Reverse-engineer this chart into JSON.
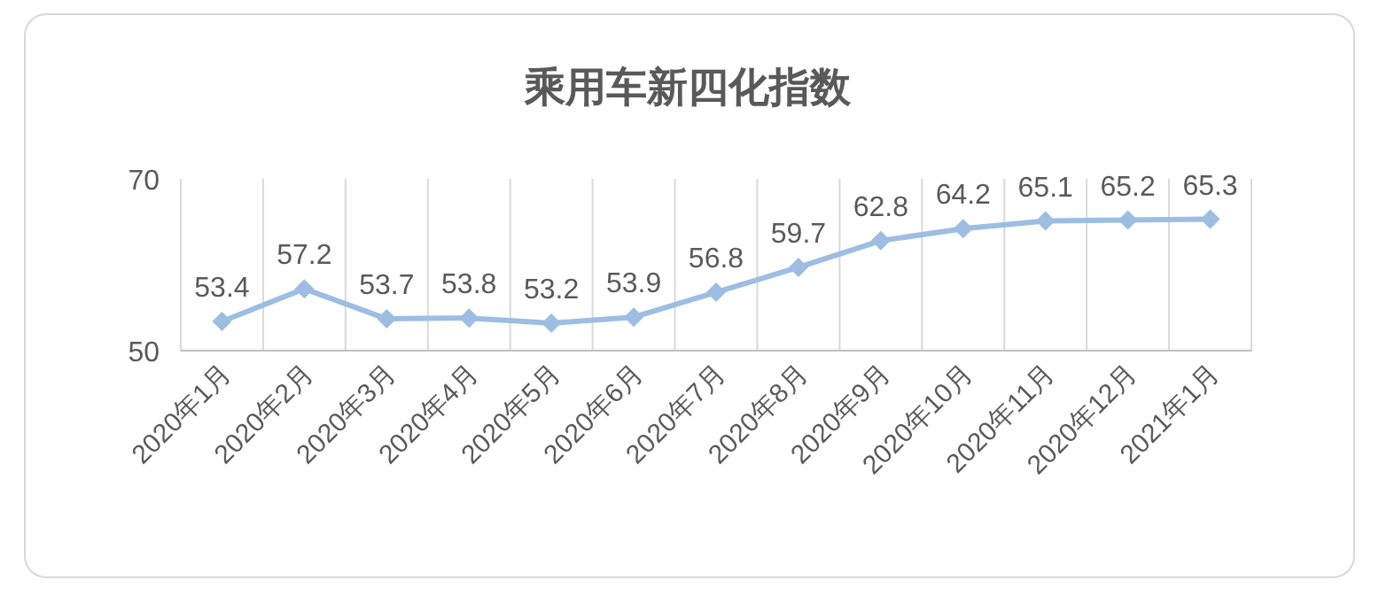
{
  "chart_data": {
    "type": "line",
    "title": "乘用车新四化指数",
    "categories": [
      "2020年1月",
      "2020年2月",
      "2020年3月",
      "2020年4月",
      "2020年5月",
      "2020年6月",
      "2020年7月",
      "2020年8月",
      "2020年9月",
      "2020年10月",
      "2020年11月",
      "2020年12月",
      "2021年1月"
    ],
    "series": [
      {
        "color": "#9dbde3",
        "values": [
          53.4,
          57.2,
          53.7,
          53.8,
          53.2,
          53.9,
          56.8,
          59.7,
          62.8,
          64.2,
          65.1,
          65.2,
          65.3
        ]
      }
    ],
    "ylim": [
      50,
      70
    ],
    "yticks": [
      50,
      70
    ],
    "grid": "x",
    "marker": "diamond",
    "line_style": "solid",
    "data_labels": true
  }
}
